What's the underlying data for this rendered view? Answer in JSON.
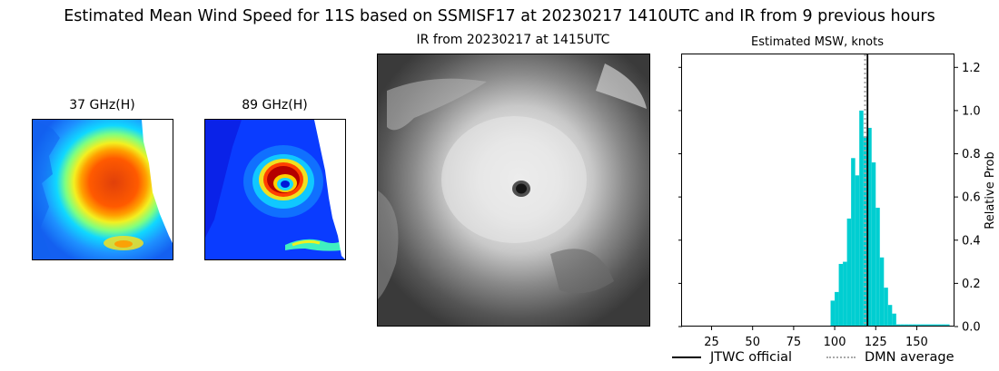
{
  "figure": {
    "title": "Estimated Mean Wind Speed for 11S based on SSMISF17 at 20230217 1410UTC and IR from 9 previous hours"
  },
  "panels": {
    "ghz37": {
      "title": "37 GHz(H)"
    },
    "ghz89": {
      "title": "89 GHz(H)"
    },
    "ir": {
      "title": "IR from 20230217 at 1415UTC"
    }
  },
  "colors": {
    "bars": "#00CED1",
    "jtwc_line": "#000000",
    "dmn_line": "#A9A9A9",
    "jet_low": "#0000ff",
    "jet_high": "#ff4500"
  },
  "chart_data": {
    "type": "bar",
    "title": "Estimated MSW, knots",
    "xlabel": "",
    "ylabel": "Relative Prob",
    "xlim": [
      7,
      173
    ],
    "ylim": [
      0,
      1.26
    ],
    "xticks": [
      25,
      50,
      75,
      100,
      125,
      150
    ],
    "yticks": [
      0.0,
      0.2,
      0.4,
      0.6,
      0.8,
      1.0,
      1.2
    ],
    "ytick_labels": [
      "0.0",
      "0.2",
      "0.4",
      "0.6",
      "0.8",
      "1.0",
      "1.2"
    ],
    "bin_width": 2.5,
    "bins_start": [
      15,
      17.5,
      20,
      22.5,
      25,
      27.5,
      30,
      32.5,
      35,
      37.5,
      40,
      42.5,
      45,
      47.5,
      50,
      52.5,
      55,
      57.5,
      60,
      62.5,
      65,
      67.5,
      70,
      72.5,
      75,
      77.5,
      80,
      82.5,
      85,
      87.5,
      90,
      92.5,
      95,
      97.5,
      100,
      102.5,
      105,
      107.5,
      110,
      112.5,
      115,
      117.5,
      120,
      122.5,
      125,
      127.5,
      130,
      132.5,
      135,
      137.5,
      140,
      142.5,
      145,
      147.5,
      150,
      152.5,
      155,
      157.5,
      160,
      162.5,
      165,
      167.5
    ],
    "values": [
      0.004,
      0.004,
      0.004,
      0.004,
      0.004,
      0.004,
      0.004,
      0.004,
      0.004,
      0.004,
      0.004,
      0.004,
      0.004,
      0.004,
      0.004,
      0.004,
      0.004,
      0.004,
      0.004,
      0.004,
      0.004,
      0.004,
      0.004,
      0.004,
      0.004,
      0.004,
      0.004,
      0.004,
      0.004,
      0.004,
      0.004,
      0.004,
      0.004,
      0.12,
      0.16,
      0.29,
      0.3,
      0.5,
      0.78,
      0.7,
      1.0,
      0.88,
      0.92,
      0.76,
      0.55,
      0.32,
      0.18,
      0.1,
      0.06,
      0.01,
      0.01,
      0.01,
      0.01,
      0.01,
      0.01,
      0.01,
      0.01,
      0.01,
      0.01,
      0.01,
      0.01,
      0.01
    ],
    "jtwc_official": 120,
    "dmn_average": 118.5,
    "legend": [
      {
        "label": "JTWC official",
        "style": "solid"
      },
      {
        "label": "DMN average",
        "style": "dotted"
      }
    ],
    "legend_placement": "bottom"
  }
}
